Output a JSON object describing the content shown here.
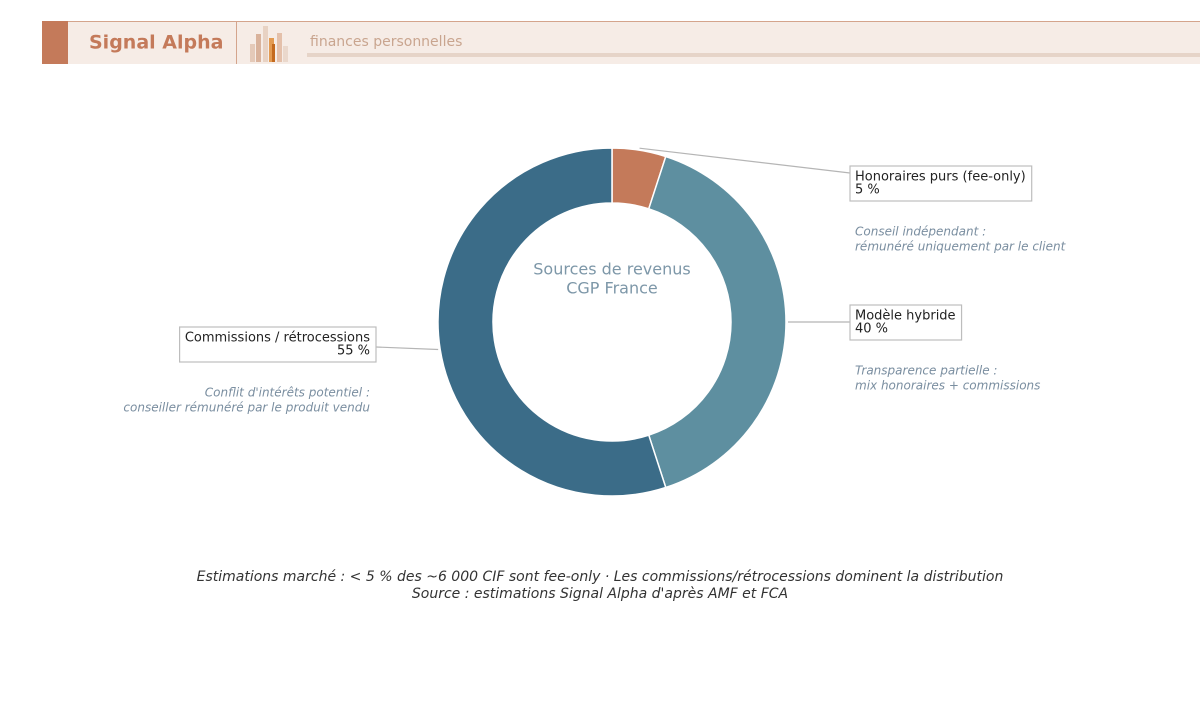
{
  "header": {
    "brand": "Signal Alpha",
    "tagline": "finances personnelles"
  },
  "chart_data": {
    "type": "pie",
    "donut": true,
    "title": [
      "Sources de revenus",
      "CGP France"
    ],
    "categories": [
      "Honoraires purs (fee-only)",
      "Modèle hybride",
      "Commissions / rétrocessions"
    ],
    "values": [
      5,
      40,
      55
    ],
    "value_labels": [
      "5 %",
      "40 %",
      "55 %"
    ],
    "colors": [
      "#c47a5a",
      "#5e8fa0",
      "#3b6c88"
    ],
    "annotations": [
      [
        "Conseil indépendant :",
        "rémunéré uniquement par le client"
      ],
      [
        "Transparence partielle :",
        "mix honoraires + commissions"
      ],
      [
        "Conflit d'intérêts potentiel :",
        "conseiller rémunéré par le produit vendu"
      ]
    ],
    "caption": [
      "Estimations marché : < 5 % des ~6 000 CIF sont fee-only · Les commissions/rétrocessions dominent la distribution",
      "Source : estimations Signal Alpha d'après AMF et FCA"
    ]
  }
}
